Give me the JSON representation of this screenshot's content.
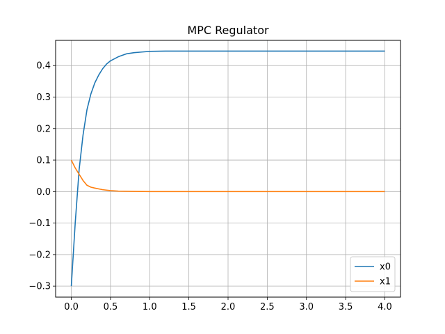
{
  "chart_data": {
    "type": "line",
    "title": "MPC Regulator",
    "xlabel": "",
    "ylabel": "",
    "xlim": [
      -0.2,
      4.2
    ],
    "ylim": [
      -0.335,
      0.48
    ],
    "xticks": [
      0.0,
      0.5,
      1.0,
      1.5,
      2.0,
      2.5,
      3.0,
      3.5,
      4.0
    ],
    "xtick_labels": [
      "0.0",
      "0.5",
      "1.0",
      "1.5",
      "2.0",
      "2.5",
      "3.0",
      "3.5",
      "4.0"
    ],
    "yticks": [
      -0.3,
      -0.2,
      -0.1,
      0.0,
      0.1,
      0.2,
      0.3,
      0.4
    ],
    "ytick_labels": [
      "−0.3",
      "−0.2",
      "−0.1",
      "0.0",
      "0.1",
      "0.2",
      "0.3",
      "0.4"
    ],
    "grid": true,
    "legend_position": "lower-right",
    "series": [
      {
        "name": "x0",
        "color": "#1f77b4",
        "x": [
          0.0,
          0.05,
          0.1,
          0.15,
          0.2,
          0.25,
          0.3,
          0.35,
          0.4,
          0.45,
          0.5,
          0.6,
          0.7,
          0.8,
          0.9,
          1.0,
          1.2,
          1.5,
          2.0,
          2.5,
          3.0,
          3.5,
          4.0
        ],
        "y": [
          -0.3,
          -0.1,
          0.07,
          0.18,
          0.26,
          0.31,
          0.345,
          0.37,
          0.39,
          0.405,
          0.415,
          0.428,
          0.437,
          0.441,
          0.443,
          0.445,
          0.446,
          0.446,
          0.446,
          0.446,
          0.446,
          0.446,
          0.446
        ]
      },
      {
        "name": "x1",
        "color": "#ff7f0e",
        "x": [
          0.0,
          0.05,
          0.1,
          0.15,
          0.2,
          0.25,
          0.3,
          0.4,
          0.5,
          0.6,
          0.8,
          1.0,
          1.5,
          2.0,
          2.5,
          3.0,
          3.5,
          4.0
        ],
        "y": [
          0.1,
          0.075,
          0.055,
          0.035,
          0.02,
          0.014,
          0.011,
          0.006,
          0.003,
          0.0015,
          0.0005,
          0.0,
          0.0,
          0.0,
          0.0,
          0.0,
          0.0,
          0.0
        ]
      }
    ]
  }
}
